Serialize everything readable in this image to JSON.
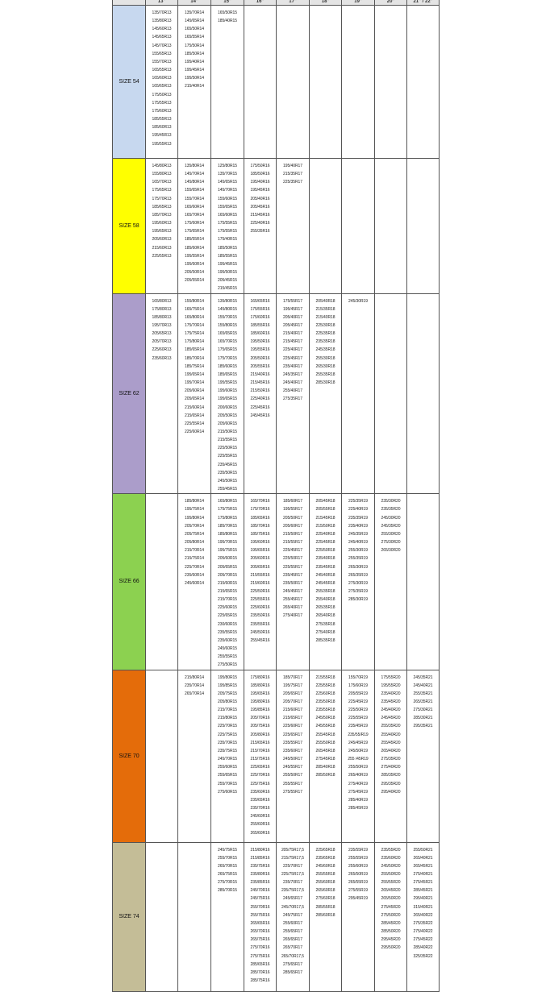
{
  "columns": [
    "",
    "13\"",
    "14\"",
    "15\"",
    "16\"",
    "17\"",
    "18\"",
    "19\"",
    "20\"",
    "21\" / 22\""
  ],
  "rows": [
    {
      "label": "SIZE 54",
      "color": "#c7d8ef",
      "height": 190,
      "cells": [
        [
          "135/70R13",
          "135/80R13",
          "145/60R13",
          "145/65R13",
          "145/70R13",
          "155/65R13",
          "155/70R13",
          "165/55R13",
          "165/60R13",
          "165/65R13",
          "175/50R13",
          "175/55R13",
          "175/60R13",
          "185/55R13",
          "185/60R13",
          "195/45R13",
          "195/55R13"
        ],
        [
          "135/70R14",
          "145/65R14",
          "165/50R14",
          "165/55R14",
          "175/50R14",
          "185/50R14",
          "195/40R14",
          "195/45R14",
          "195/50R14",
          "215/40R14"
        ],
        [
          "165/50R15",
          "185/40R15"
        ],
        [],
        [],
        [],
        [],
        [],
        []
      ]
    },
    {
      "label": "SIZE 58",
      "color": "#ffff00",
      "height": 164,
      "cells": [
        [
          "145/80R13",
          "155/80R13",
          "165/70R13",
          "175/65R13",
          "175/70R13",
          "185/65R13",
          "185/70R13",
          "195/60R13",
          "195/65R13",
          "205/60R13",
          "215/60R13",
          "225/55R13"
        ],
        [
          "135/80R14",
          "145/70R14",
          "145/80R14",
          "155/65R14",
          "155/70R14",
          "165/60R14",
          "165/70R14",
          "175/60R14",
          "175/65R14",
          "185/55R14",
          "185/60R14",
          "195/55R14",
          "195/60R14",
          "205/50R14",
          "205/55R14"
        ],
        [
          "125/80R15",
          "135/70R15",
          "145/65R15",
          "145/70R15",
          "155/60R15",
          "155/65R15",
          "165/60R15",
          "175/55R15",
          "175/55R15",
          "175/40R15",
          "185/50R15",
          "185/55R15",
          "195/45R15",
          "195/50R15",
          "205/45R15",
          "215/45R15"
        ],
        [
          "175/50R16",
          "185/50R16",
          "195/40R16",
          "195/45R16",
          "205/40R16",
          "205/45R16",
          "215/45R16",
          "225/40R16",
          "255/35R16"
        ],
        [
          "195/40R17",
          "215/35R17",
          "225/35R17"
        ],
        [],
        [],
        [],
        []
      ]
    },
    {
      "label": "SIZE 62",
      "color": "#ab9dca",
      "height": 236,
      "cells": [
        [
          "165/80R13",
          "175/80R13",
          "185/80R13",
          "195/70R13",
          "205/65R13",
          "205/70R13",
          "225/60R13",
          "235/60R13"
        ],
        [
          "155/80R14",
          "165/75R14",
          "165/80R14",
          "175/70R14",
          "175/75R14",
          "175/80R14",
          "185/65R14",
          "185/70R14",
          "185/75R14",
          "195/65R14",
          "195/70R14",
          "205/60R14",
          "205/65R14",
          "215/60R14",
          "215/65R14",
          "225/55R14",
          "225/60R14"
        ],
        [
          "135/80R15",
          "145/80R15",
          "155/70R15",
          "155/80R15",
          "165/65R15",
          "165/70R15",
          "175/65R15",
          "175/70R15",
          "185/60R15",
          "185/65R15",
          "195/55R15",
          "195/60R15",
          "195/65R15",
          "200/60R15",
          "205/50R15",
          "205/60R15",
          "215/50R15",
          "215/55R15",
          "225/50R15",
          "225/55R15",
          "235/45R15",
          "235/50R15",
          "245/50R15",
          "255/45R15"
        ],
        [
          "165/65R16",
          "175/55R16",
          "175/60R16",
          "185/55R16",
          "185/60R16",
          "195/50R16",
          "195/55R16",
          "205/50R16",
          "205/55R16",
          "215/40R16",
          "215/45R16",
          "215/50R16",
          "225/40R16",
          "225/45R16",
          "245/45R16"
        ],
        [
          "175/55R17",
          "195/45R17",
          "205/40R17",
          "205/45R17",
          "215/40R17",
          "215/45R17",
          "225/40R17",
          "225/45R17",
          "235/40R17",
          "245/35R17",
          "245/40R17",
          "255/40R17",
          "275/35R17"
        ],
        [
          "205/40R18",
          "215/35R18",
          "215/40R18",
          "225/30R18",
          "225/35R18",
          "235/35R18",
          "245/35R18",
          "255/30R18",
          "265/30R18",
          "255/35R18",
          "285/30R18"
        ],
        [
          "245/30R19"
        ],
        [],
        []
      ]
    },
    {
      "label": "SIZE 66",
      "color": "#8cd150",
      "height": 205,
      "cells": [
        [],
        [
          "185/80R14",
          "195/75R14",
          "195/80R14",
          "205/70R14",
          "205/75R14",
          "205/80R14",
          "215/70R14",
          "215/75R14",
          "225/70R14",
          "235/60R14",
          "245/60R14"
        ],
        [
          "165/80R15",
          "175/75R15",
          "175/80R15",
          "185/70R15",
          "185/80R15",
          "195/70R15",
          "195/75R15",
          "205/60R15",
          "205/65R15",
          "205/70R15",
          "215/60R15",
          "215/65R15",
          "215/70R15",
          "225/60R15",
          "225/65R15",
          "230/60R15",
          "235/55R15",
          "235/60R15",
          "245/60R15",
          "255/55R15",
          "275/50R15"
        ],
        [
          "165/70R16",
          "175/70R16",
          "185/65R16",
          "185/70R16",
          "185/75R16",
          "195/60R16",
          "195/65R16",
          "205/60R16",
          "205/65R16",
          "215/55R16",
          "215/60R16",
          "225/50R16",
          "225/55R16",
          "225/60R16",
          "235/50R16",
          "235/55R16",
          "245/50R16",
          "255/45R16"
        ],
        [
          "185/60R17",
          "195/55R17",
          "205/50R17",
          "205/60R17",
          "215/50R17",
          "215/55R17",
          "225/45R17",
          "225/50R17",
          "225/55R17",
          "235/45R17",
          "235/50R17",
          "245/45R17",
          "255/45R17",
          "265/40R17",
          "275/40R17"
        ],
        [
          "205/45R18",
          "205/55R18",
          "215/45R18",
          "215/50R18",
          "225/40R18",
          "225/45R18",
          "225/50R18",
          "235/40R18",
          "235/45R18",
          "245/40R18",
          "245/45R18",
          "255/35R18",
          "255/40R18",
          "265/35R18",
          "265/40R18",
          "275/35R18",
          "275/40R18",
          "285/35R18"
        ],
        [
          "225/35R19",
          "225/40R19",
          "235/35R19",
          "235/40R19",
          "245/35R19",
          "245/40R19",
          "255/30R19",
          "255/35R19",
          "265/30R19",
          "265/35R19",
          "275/30R19",
          "275/35R19",
          "285/30R19"
        ],
        [
          "235/30R20",
          "235/35R20",
          "245/30R20",
          "245/35R20",
          "255/30R20",
          "275/30R20",
          "265/30R20"
        ],
        []
      ]
    },
    {
      "label": "SIZE 70",
      "color": "#e46c0a",
      "height": 214,
      "cells": [
        [],
        [
          "215/80R14",
          "235/70R14",
          "265/70R14"
        ],
        [
          "195/80R15",
          "195/85R15",
          "205/75R15",
          "205/80R15",
          "215/70R15",
          "215/80R15",
          "225/70R15",
          "225/75R15",
          "235/70R15",
          "235/75R15",
          "245/70R15",
          "255/60R15",
          "255/65R15",
          "255/70R15",
          "275/60R15"
        ],
        [
          "175/80R16",
          "185/80R16",
          "195/65R16",
          "195/80R16",
          "195/85R16",
          "205/70R16",
          "205/75R16",
          "205/80R16",
          "215/65R16",
          "215/70R16",
          "215/75R16",
          "225/65R16",
          "225/70R16",
          "225/75R16",
          "235/60R16",
          "235/65R16",
          "235/70R16",
          "245/60R16",
          "255/60R16",
          "265/60R16"
        ],
        [
          "185/70R17",
          "195/75R17",
          "205/65R17",
          "205/70R17",
          "215/60R17",
          "215/65R17",
          "225/60R17",
          "225/65R17",
          "235/55R17",
          "235/60R17",
          "245/50R17",
          "245/55R17",
          "255/50R17",
          "255/55R17",
          "275/55R17"
        ],
        [
          "215/55R18",
          "225/55R18",
          "225/60R18",
          "235/50R18",
          "235/55R18",
          "245/50R18",
          "245/55R18",
          "255/45R18",
          "255/50R18",
          "265/45R18",
          "275/45R18",
          "285/40R18",
          "285/50R18"
        ],
        [
          "155/70R19",
          "175/60R19",
          "205/55R19",
          "225/45R19",
          "225/50R19",
          "225/55R19",
          "235/45R19",
          "235/55/R19",
          "245/45R19",
          "245/50R19",
          "255 /45R19",
          "255/50R19",
          "265/40R19",
          "275/40R19",
          "275/45R19",
          "285/40R19",
          "285/45R19"
        ],
        [
          "175/55R20",
          "195/55R20",
          "235/40R20",
          "235/45R20",
          "245/40R20",
          "245/45R20",
          "255/35R20",
          "255/40R20",
          "255/45R20",
          "265/40R20",
          "275/35R20",
          "275/40R20",
          "285/35R20",
          "295/35R20",
          "295/40R20"
        ],
        [
          "245/35R21",
          "245/40R21",
          "255/35R21",
          "265/35R21",
          "275/30R21",
          "285/30R21",
          "295/35R21"
        ]
      ]
    },
    {
      "label": "SIZE 74",
      "color": "#c4bd97",
      "height": 185,
      "cells": [
        [],
        [],
        [
          "245/75R15",
          "255/70R15",
          "265/70R15",
          "265/75R15",
          "275/70R15",
          "285/70R15"
        ],
        [
          "215/80R16",
          "215/85R16",
          "235/75R16",
          "235/80R16",
          "235/85R16",
          "245/70R16",
          "245/75R16",
          "255/70R16",
          "255/75R16",
          "265/65R16",
          "265/70R16",
          "265/75R16",
          "275/70R16",
          "275/75R16",
          "285/65R16",
          "285/70R16",
          "285/75R16"
        ],
        [
          "205/75R17,5",
          "215/75R17,5",
          "225/70R17",
          "225/75R17,5",
          "235/70R17",
          "235/75R17,5",
          "245/65R17",
          "245/70R17,5",
          "245/75R17",
          "255/60R17",
          "255/65R17",
          "265/65R17",
          "265/70R17",
          "265/70R17,5",
          "275/65R17",
          "285/65R17"
        ],
        [
          "225/65R18",
          "235/65R18",
          "245/60R18",
          "255/55R18",
          "255/60R18",
          "265/60R18",
          "275/60R18",
          "285/55R18",
          "285/60R18"
        ],
        [
          "235/55R19",
          "255/55R19",
          "255/60R19",
          "265/50R19",
          "265/55R19",
          "275/55R19",
          "295/45R19"
        ],
        [
          "235/55R20",
          "235/60R20",
          "245/50R20",
          "255/50R20",
          "255/55R20",
          "265/45R20",
          "265/50R20",
          "275/45R20",
          "275/50R20",
          "285/45R20",
          "285/50R20",
          "295/45R20",
          "295/50R20"
        ],
        [
          "255/50R21",
          "265/40R21",
          "265/45R21",
          "275/40R21",
          "275/45R21",
          "285/45R21",
          "295/40R21",
          "315/40R21",
          "265/40R22",
          "275/35R22",
          "275/40R22",
          "275/45R22",
          "285/40R22",
          "325/35R22"
        ]
      ]
    }
  ]
}
